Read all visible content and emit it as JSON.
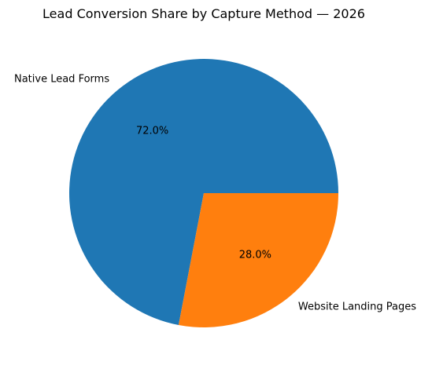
{
  "chart_data": {
    "type": "pie",
    "title": "Lead Conversion Share by Capture Method — 2026",
    "slices": [
      {
        "label": "Native Lead Forms",
        "value": 72.0,
        "pct_label": "72.0%",
        "color": "#1f77b4"
      },
      {
        "label": "Website Landing Pages",
        "value": 28.0,
        "pct_label": "28.0%",
        "color": "#ff7f0e"
      }
    ],
    "start_angle_deg": 0,
    "direction": "counterclockwise"
  }
}
